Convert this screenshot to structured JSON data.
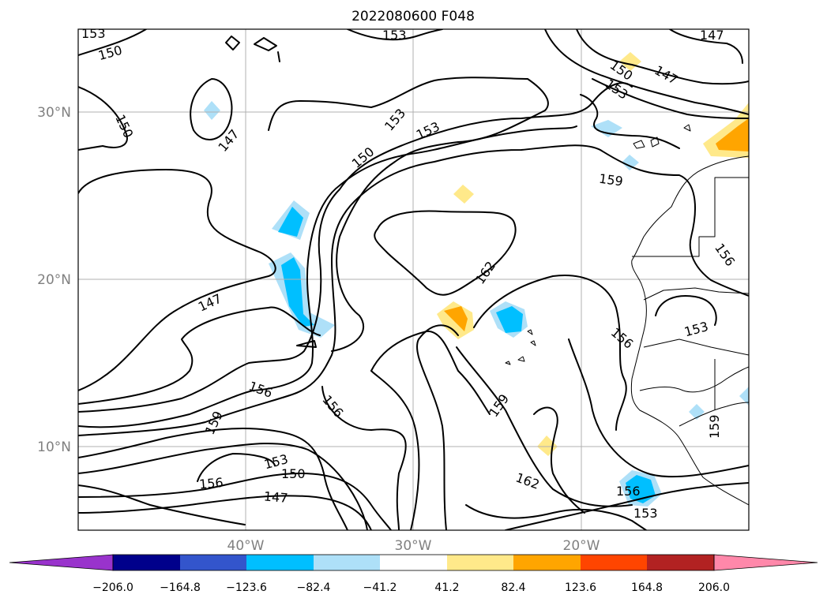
{
  "title": "2022080600 F048",
  "lat_labels": [
    "30°N",
    "20°N",
    "10°N"
  ],
  "lon_labels": [
    "40°W",
    "30°W",
    "20°W"
  ],
  "contour_levels": [
    "147",
    "150",
    "153",
    "156",
    "159",
    "162"
  ],
  "colorbar": {
    "tick_labels": [
      "−206.0",
      "−164.8",
      "−123.6",
      "−82.4",
      "−41.2",
      "41.2",
      "82.4",
      "123.6",
      "164.8",
      "206.0"
    ],
    "colors": [
      "#9933cc",
      "#00008b",
      "#3355cc",
      "#00bfff",
      "#aee0f8",
      "#ffffff",
      "#ffe98a",
      "#ffa500",
      "#ff4500",
      "#b22222",
      "#ff88aa"
    ],
    "extend": "both"
  },
  "contour_labels": [
    {
      "text": "153"
    },
    {
      "text": "150"
    },
    {
      "text": "153"
    },
    {
      "text": "147"
    },
    {
      "text": "150"
    },
    {
      "text": "147"
    },
    {
      "text": "153"
    },
    {
      "text": "150"
    },
    {
      "text": "147"
    },
    {
      "text": "153"
    },
    {
      "text": "153"
    },
    {
      "text": "150"
    },
    {
      "text": "159"
    },
    {
      "text": "162"
    },
    {
      "text": "147"
    },
    {
      "text": "156"
    },
    {
      "text": "153"
    },
    {
      "text": "156"
    },
    {
      "text": "156"
    },
    {
      "text": "156"
    },
    {
      "text": "159"
    },
    {
      "text": "159"
    },
    {
      "text": "159"
    },
    {
      "text": "153"
    },
    {
      "text": "150"
    },
    {
      "text": "156"
    },
    {
      "text": "147"
    },
    {
      "text": "162"
    },
    {
      "text": "156"
    },
    {
      "text": "153"
    }
  ]
}
